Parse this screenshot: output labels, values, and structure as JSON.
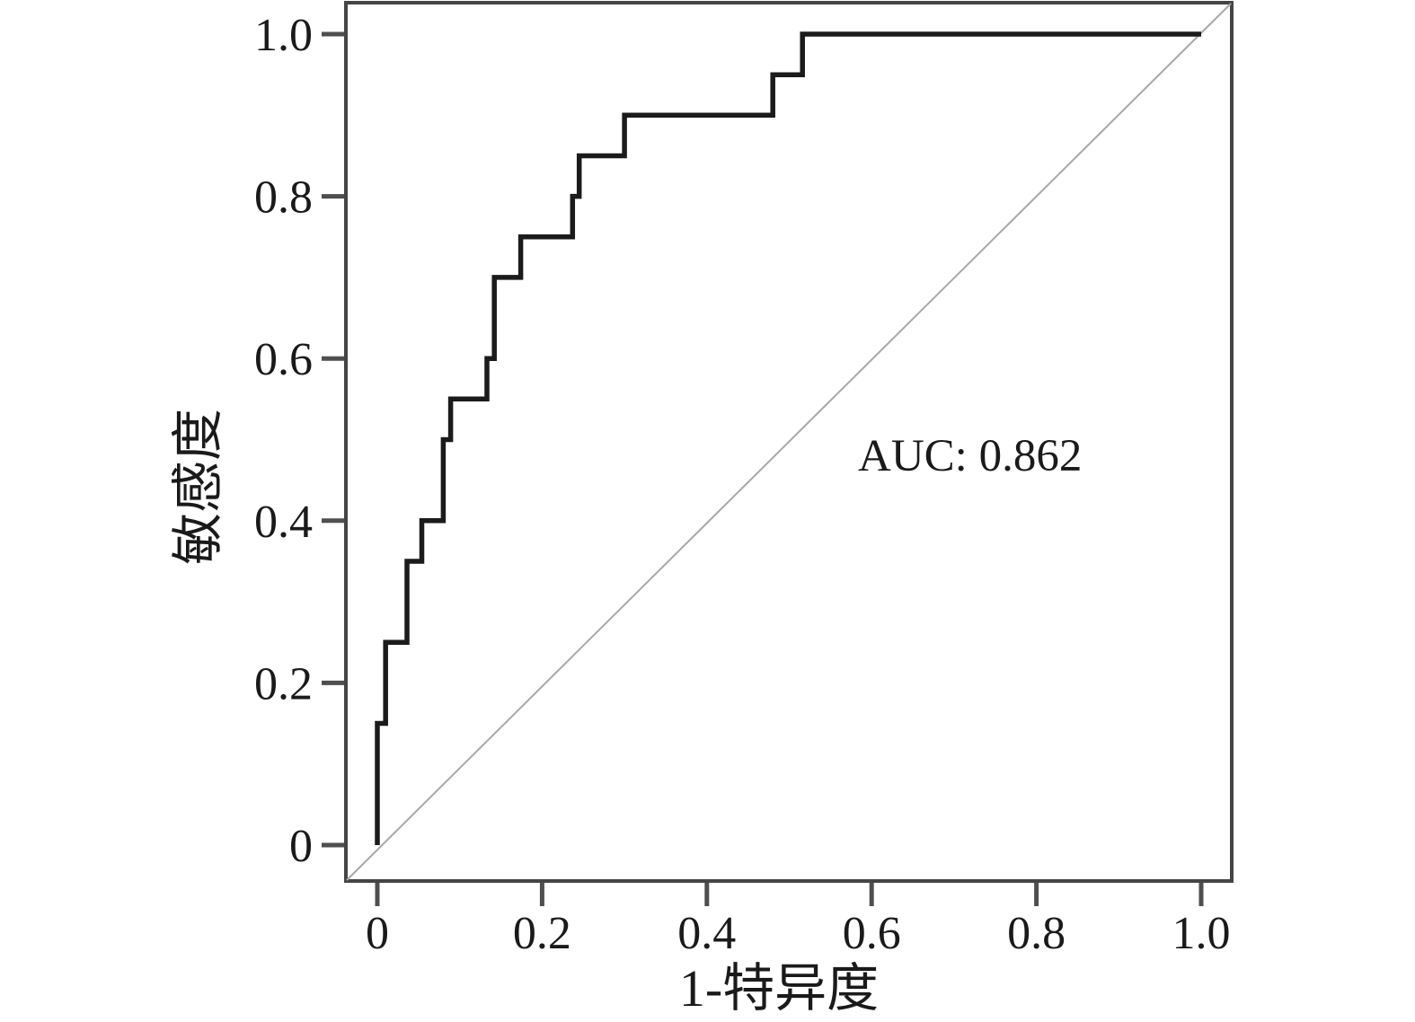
{
  "figure": {
    "background": "#ffffff"
  },
  "chart_data": {
    "type": "line",
    "subtype": "roc-step-curve",
    "title": "",
    "xlabel": "1-特异度",
    "ylabel": "敏感度",
    "annotation": "AUC: 0.862",
    "auc_value": 0.862,
    "xlim": [
      0,
      1
    ],
    "ylim": [
      0,
      1
    ],
    "grid": false,
    "legend_position": "none",
    "xticks": {
      "values": [
        0,
        0.2,
        0.4,
        0.6,
        0.8,
        1.0
      ],
      "labels": [
        "0",
        "0.2",
        "0.4",
        "0.6",
        "0.8",
        "1.0"
      ]
    },
    "yticks": {
      "values": [
        0,
        0.2,
        0.4,
        0.6,
        0.8,
        1.0
      ],
      "labels": [
        "0",
        "0.2",
        "0.4",
        "0.6",
        "0.8",
        "1.0"
      ]
    },
    "series": [
      {
        "name": "ROC curve",
        "style": "step",
        "color": "#1b1b1b",
        "points": [
          [
            0,
            0
          ],
          [
            0,
            0.15
          ],
          [
            0.01,
            0.15
          ],
          [
            0.01,
            0.25
          ],
          [
            0.036,
            0.25
          ],
          [
            0.036,
            0.35
          ],
          [
            0.054,
            0.35
          ],
          [
            0.054,
            0.4
          ],
          [
            0.08,
            0.4
          ],
          [
            0.08,
            0.5
          ],
          [
            0.089,
            0.5
          ],
          [
            0.089,
            0.55
          ],
          [
            0.133,
            0.55
          ],
          [
            0.133,
            0.6
          ],
          [
            0.142,
            0.6
          ],
          [
            0.142,
            0.7
          ],
          [
            0.174,
            0.7
          ],
          [
            0.174,
            0.75
          ],
          [
            0.237,
            0.75
          ],
          [
            0.237,
            0.8
          ],
          [
            0.245,
            0.8
          ],
          [
            0.245,
            0.85
          ],
          [
            0.3,
            0.85
          ],
          [
            0.3,
            0.9
          ],
          [
            0.48,
            0.9
          ],
          [
            0.48,
            0.95
          ],
          [
            0.516,
            0.95
          ],
          [
            0.516,
            1.0
          ],
          [
            1.0,
            1.0
          ]
        ]
      },
      {
        "name": "reference diagonal",
        "style": "line",
        "extent": "plot-corners",
        "color": "#a8a8a8",
        "points": [
          [
            0,
            0
          ],
          [
            1,
            1
          ]
        ]
      }
    ]
  },
  "colors": {
    "axis_box": "#454545",
    "tick": "#4f4f4f",
    "text": "#1a1a1a",
    "curve": "#1b1b1b",
    "diagonal": "#a8a8a8"
  }
}
